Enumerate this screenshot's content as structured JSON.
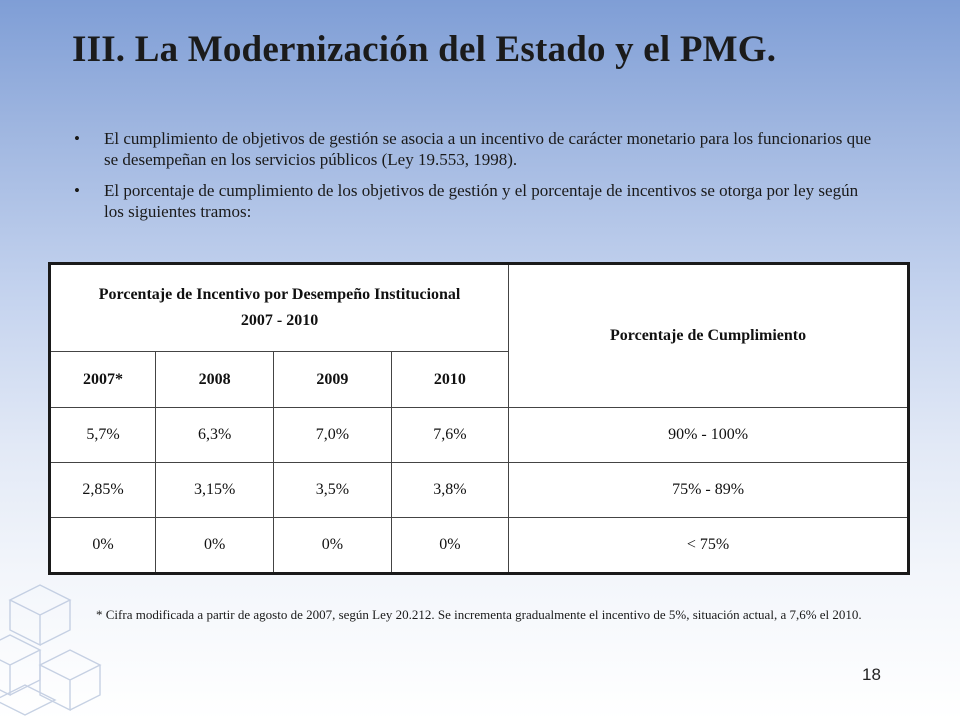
{
  "slide": {
    "title": "III. La Modernización del Estado y el PMG.",
    "bullets": [
      "El cumplimiento de objetivos de gestión se asocia a un incentivo de carácter monetario para los funcionarios que se desempeñan en los servicios públicos (Ley 19.553, 1998).",
      "El porcentaje  de cumplimiento de los objetivos de gestión y el porcentaje de incentivos se otorga por ley según los siguientes tramos:"
    ],
    "footnote": "* Cifra modificada a partir de agosto de 2007, según Ley 20.212. Se incrementa gradualmente el incentivo de 5%, situación actual, a 7,6% el 2010.",
    "page_number": "18"
  },
  "table": {
    "header_left_title": "Porcentaje de Incentivo por Desempeño Institucional",
    "header_left_years": "2007 - 2010",
    "header_right": "Porcentaje de Cumplimiento",
    "year_headers": [
      "2007*",
      "2008",
      "2009",
      "2010"
    ],
    "rows": [
      {
        "values": [
          "5,7%",
          "6,3%",
          "7,0%",
          "7,6%"
        ],
        "range": "90% - 100%"
      },
      {
        "values": [
          "2,85%",
          "3,15%",
          "3,5%",
          "3,8%"
        ],
        "range": "75% - 89%"
      },
      {
        "values": [
          "0%",
          "0%",
          "0%",
          "0%"
        ],
        "range": "< 75%"
      }
    ]
  }
}
